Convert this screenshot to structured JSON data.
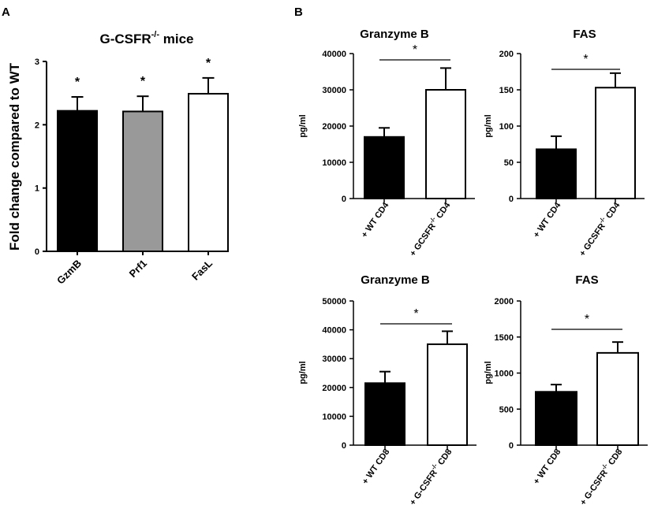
{
  "panels": {
    "A": "A",
    "B": "B"
  },
  "chart_data": [
    {
      "id": "a",
      "type": "bar",
      "title": "G-CSFR",
      "title_sup": "-/-",
      "title_suffix": " mice",
      "xlabel": "",
      "ylabel": "Fold change compared to WT",
      "ylim": [
        0,
        3
      ],
      "yticks": [
        0,
        1,
        2,
        3
      ],
      "categories": [
        "GzmB",
        "Prf1",
        "FasL"
      ],
      "values": [
        2.22,
        2.21,
        2.49
      ],
      "errors": [
        0.22,
        0.24,
        0.25
      ],
      "colors": [
        "#000000",
        "#999999",
        "#ffffff"
      ],
      "significance": [
        "*",
        "*",
        "*"
      ]
    },
    {
      "id": "b1",
      "type": "bar",
      "title": "Granzyme B",
      "ylabel": "pg/ml",
      "ylim": [
        0,
        40000
      ],
      "yticks": [
        0,
        10000,
        20000,
        30000,
        40000
      ],
      "categories": [
        {
          "main": "+ WT CD4",
          "sup": "",
          "tail": ""
        },
        {
          "main": "+ GCSFR",
          "sup": "-/-",
          "tail": " CD4"
        }
      ],
      "values": [
        17000,
        30000
      ],
      "errors": [
        2500,
        6000
      ],
      "colors": [
        "#000000",
        "#ffffff"
      ],
      "significance": "*"
    },
    {
      "id": "b2",
      "type": "bar",
      "title": "FAS",
      "ylabel": "pg/ml",
      "ylim": [
        0,
        200
      ],
      "yticks": [
        0,
        50,
        100,
        150,
        200
      ],
      "categories": [
        {
          "main": "+ WT CD4",
          "sup": "",
          "tail": ""
        },
        {
          "main": "+ GCSFR",
          "sup": "-/-",
          "tail": " CD4"
        }
      ],
      "values": [
        68,
        153
      ],
      "errors": [
        18,
        20
      ],
      "colors": [
        "#000000",
        "#ffffff"
      ],
      "significance": "*"
    },
    {
      "id": "b3",
      "type": "bar",
      "title": "Granzyme B",
      "ylabel": "pg/ml",
      "ylim": [
        0,
        50000
      ],
      "yticks": [
        0,
        10000,
        20000,
        30000,
        40000,
        50000
      ],
      "categories": [
        {
          "main": "+ WT CD8",
          "sup": "",
          "tail": ""
        },
        {
          "main": "+ G-CSFR",
          "sup": "-/-",
          "tail": " CD8"
        }
      ],
      "values": [
        21500,
        35000
      ],
      "errors": [
        4000,
        4500
      ],
      "colors": [
        "#000000",
        "#ffffff"
      ],
      "significance": "*"
    },
    {
      "id": "b4",
      "type": "bar",
      "title": "FAS",
      "ylabel": "pg/ml",
      "ylim": [
        0,
        2000
      ],
      "yticks": [
        0,
        500,
        1000,
        1500,
        2000
      ],
      "categories": [
        {
          "main": "+ WT CD8",
          "sup": "",
          "tail": ""
        },
        {
          "main": "+ G-CSFR",
          "sup": "-/-",
          "tail": " CD8"
        }
      ],
      "values": [
        740,
        1280
      ],
      "errors": [
        100,
        150
      ],
      "colors": [
        "#000000",
        "#ffffff"
      ],
      "significance": "*"
    }
  ]
}
